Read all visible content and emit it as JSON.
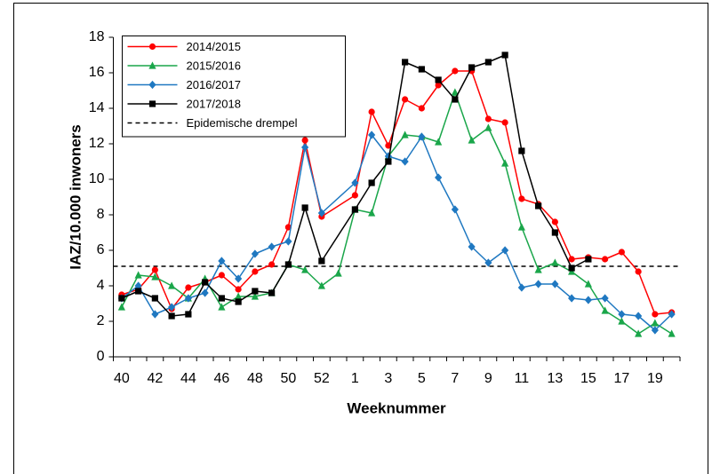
{
  "chart_data": {
    "type": "line",
    "x_label": "Weeknummer",
    "y_label": "IAZ/10.000 inwoners",
    "categories": [
      "40",
      null,
      "42",
      null,
      "44",
      null,
      "46",
      null,
      "48",
      null,
      "50",
      null,
      "52",
      null,
      "1",
      null,
      "3",
      null,
      "5",
      null,
      "7",
      null,
      "9",
      null,
      "11",
      null,
      "13",
      null,
      "15",
      null,
      "17",
      null,
      "19",
      null
    ],
    "series": [
      {
        "name": "2014/2015",
        "color": "#ff0000",
        "marker": "circle",
        "values": [
          3.5,
          3.8,
          4.9,
          2.7,
          3.9,
          4.2,
          4.6,
          3.8,
          4.8,
          5.2,
          7.3,
          12.2,
          7.9,
          null,
          9.1,
          13.8,
          11.9,
          14.5,
          14.0,
          15.3,
          16.1,
          16.1,
          13.4,
          13.2,
          8.9,
          8.6,
          7.6,
          5.5,
          5.6,
          5.5,
          5.9,
          4.8,
          2.4,
          2.5
        ]
      },
      {
        "name": "2015/2016",
        "color": "#1aa64a",
        "marker": "triangle",
        "values": [
          2.8,
          4.6,
          4.5,
          4.0,
          3.3,
          4.4,
          2.8,
          3.4,
          3.4,
          3.6,
          5.2,
          4.9,
          4.0,
          4.7,
          8.3,
          8.1,
          11.3,
          12.5,
          12.4,
          12.1,
          14.9,
          12.2,
          12.9,
          10.9,
          7.3,
          4.9,
          5.3,
          4.8,
          4.1,
          2.6,
          2.0,
          1.3,
          1.9,
          1.3
        ]
      },
      {
        "name": "2016/2017",
        "color": "#1f78c1",
        "marker": "diamond",
        "values": [
          3.3,
          4.0,
          2.4,
          2.8,
          3.3,
          3.6,
          5.4,
          4.4,
          5.8,
          6.2,
          6.5,
          11.8,
          8.1,
          null,
          9.8,
          12.5,
          11.3,
          11.0,
          12.4,
          10.1,
          8.3,
          6.2,
          5.3,
          6.0,
          3.9,
          4.1,
          4.1,
          3.3,
          3.2,
          3.3,
          2.4,
          2.3,
          1.5,
          2.4
        ]
      },
      {
        "name": "2017/2018",
        "color": "#000000",
        "marker": "square",
        "values": [
          3.3,
          3.7,
          3.3,
          2.3,
          2.4,
          4.2,
          3.3,
          3.1,
          3.7,
          3.6,
          5.2,
          8.4,
          5.4,
          null,
          8.3,
          9.8,
          11.0,
          16.6,
          16.2,
          15.6,
          14.5,
          16.3,
          16.6,
          17.0,
          11.6,
          8.5,
          7.0,
          5.0,
          5.5,
          null,
          null,
          null,
          null,
          null
        ]
      }
    ],
    "threshold": {
      "name": "Epidemische drempel",
      "value": 5.1,
      "color": "#000000",
      "style": "dashed"
    },
    "ylim": [
      0,
      18
    ],
    "yticks": [
      0,
      2,
      4,
      6,
      8,
      10,
      12,
      14,
      16,
      18
    ],
    "grid": false,
    "legend": "top-left"
  }
}
